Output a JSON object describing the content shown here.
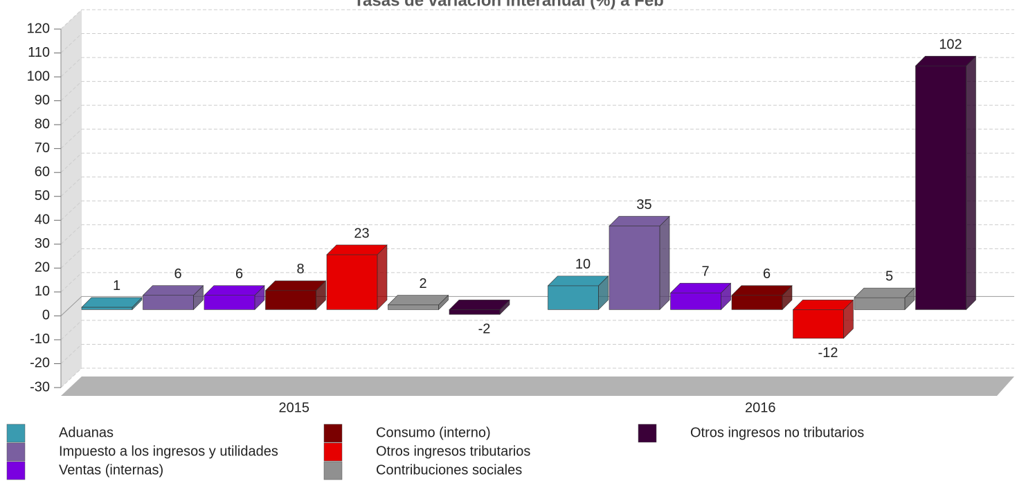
{
  "chart_data": {
    "type": "bar3d",
    "title": "Tasas de variación interanual (%) a Feb",
    "categories": [
      "2015",
      "2016"
    ],
    "series": [
      {
        "name": "Aduanas",
        "color": "#3a9bb0",
        "values": [
          1,
          10
        ]
      },
      {
        "name": "Impuesto a los ingresos y utilidades",
        "color": "#7a5fa0",
        "values": [
          6,
          35
        ]
      },
      {
        "name": "Ventas (internas)",
        "color": "#7a00e0",
        "values": [
          6,
          7
        ]
      },
      {
        "name": "Consumo (interno)",
        "color": "#7a0000",
        "values": [
          8,
          6
        ]
      },
      {
        "name": "Otros ingresos tributarios",
        "color": "#e60000",
        "values": [
          23,
          -12
        ]
      },
      {
        "name": "Contribuciones sociales",
        "color": "#909090",
        "values": [
          2,
          5
        ]
      },
      {
        "name": "Otros ingresos no tributarios",
        "color": "#3a0038",
        "values": [
          -2,
          102
        ]
      }
    ],
    "ylim": [
      -30,
      120
    ],
    "yticks": [
      -30,
      -20,
      -10,
      0,
      10,
      20,
      30,
      40,
      50,
      60,
      70,
      80,
      90,
      100,
      110,
      120
    ],
    "grid": true
  }
}
